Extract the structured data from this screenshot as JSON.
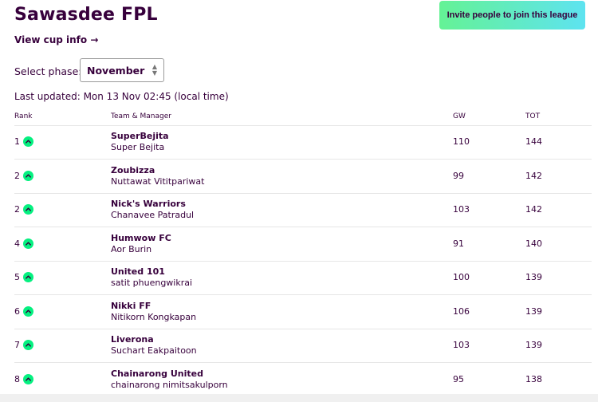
{
  "league": {
    "title": "Sawasdee FPL",
    "invite_label": "Invite people to join this league",
    "cup_link_label": "View cup info →"
  },
  "phase": {
    "label": "Select phase:",
    "selected": "November"
  },
  "last_updated": "Last updated: Mon 13 Nov 02:45 (local time)",
  "table": {
    "headers": {
      "rank": "Rank",
      "team_manager": "Team & Manager",
      "gw": "GW",
      "tot": "TOT"
    },
    "rows": [
      {
        "rank": "1",
        "movement": "up",
        "team": "SuperBejita",
        "manager": "Super Bejita",
        "gw": "110",
        "tot": "144"
      },
      {
        "rank": "2",
        "movement": "up",
        "team": "Zoubizza",
        "manager": "Nuttawat Vititpariwat",
        "gw": "99",
        "tot": "142"
      },
      {
        "rank": "2",
        "movement": "up",
        "team": "Nick's Warriors",
        "manager": "Chanavee Patradul",
        "gw": "103",
        "tot": "142"
      },
      {
        "rank": "4",
        "movement": "up",
        "team": "Humwow FC",
        "manager": "Aor Burin",
        "gw": "91",
        "tot": "140"
      },
      {
        "rank": "5",
        "movement": "up",
        "team": "United 101",
        "manager": "satit phuengwikrai",
        "gw": "100",
        "tot": "139"
      },
      {
        "rank": "6",
        "movement": "up",
        "team": "Nikki FF",
        "manager": "Nitikorn Kongkapan",
        "gw": "106",
        "tot": "139"
      },
      {
        "rank": "7",
        "movement": "up",
        "team": "Liverona",
        "manager": "Suchart Eakpaitoon",
        "gw": "103",
        "tot": "139"
      },
      {
        "rank": "8",
        "movement": "up",
        "team": "Chainarong United",
        "manager": "chainarong nimitsakulporn",
        "gw": "95",
        "tot": "138"
      }
    ]
  },
  "colors": {
    "primary": "#37003c",
    "movement_up": "#05f080",
    "invite_gradient_start": "#64f295",
    "invite_gradient_end": "#5ee3f0"
  }
}
